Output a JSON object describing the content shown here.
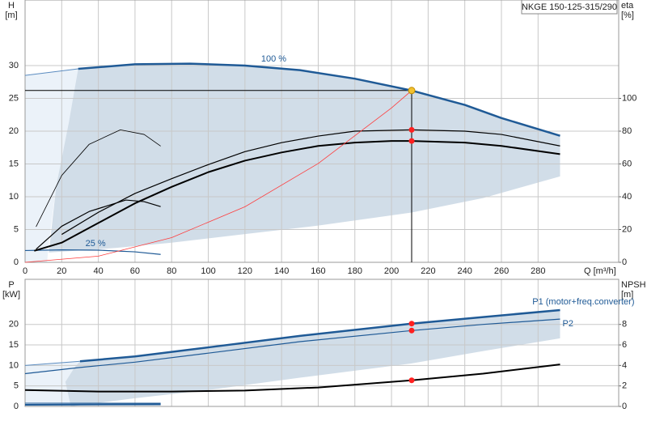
{
  "chart_data": [
    {
      "type": "line",
      "title": "NKGE 150-125-315/290",
      "ylabel": [
        "H",
        "[m]"
      ],
      "y2label": [
        "eta",
        "[%]"
      ],
      "xlabel": "Q [m³/h]",
      "xlim": [
        0,
        324
      ],
      "ylim": [
        0,
        40
      ],
      "y2lim": [
        0,
        160
      ],
      "xticks": [
        0,
        20,
        40,
        60,
        80,
        100,
        120,
        140,
        160,
        180,
        200,
        220,
        240,
        260,
        280
      ],
      "yticks": [
        0,
        5,
        10,
        15,
        20,
        25,
        30
      ],
      "y2ticks": [
        0,
        20,
        40,
        60,
        80,
        100
      ],
      "grid": true,
      "series": [
        {
          "kind": "area",
          "color": "#e8f0f8",
          "x": [
            0,
            29,
            27,
            24,
            17,
            13,
            12,
            0
          ],
          "values": [
            28.5,
            29.5,
            26,
            21.5,
            11.6,
            3,
            0,
            0
          ]
        },
        {
          "kind": "area",
          "color": "#c9d7e4",
          "x": [
            29,
            60,
            90,
            120,
            150,
            180,
            211,
            240,
            260,
            292,
            292,
            250,
            211,
            160,
            120,
            80,
            50,
            30,
            13,
            17,
            24
          ],
          "values": [
            29.5,
            30.2,
            30.3,
            30.0,
            29.3,
            28.0,
            26.2,
            24.0,
            22.0,
            19.3,
            13.1,
            9.8,
            7.6,
            5.6,
            4.3,
            3.0,
            2.2,
            1.8,
            1.5,
            11.6,
            21.5
          ]
        },
        {
          "color": "#5b8cc0",
          "width": 1,
          "x": [
            0,
            29
          ],
          "values": [
            28.5,
            29.5
          ]
        },
        {
          "name": "100 %",
          "color": "#1f5a96",
          "width": 2.5,
          "x": [
            29,
            60,
            90,
            120,
            150,
            180,
            211,
            240,
            260,
            292
          ],
          "values": [
            29.5,
            30.2,
            30.3,
            30.0,
            29.3,
            28.0,
            26.2,
            24.0,
            22.0,
            19.3
          ]
        },
        {
          "name": "25 %",
          "color": "#1f5a96",
          "width": 1.2,
          "x": [
            0,
            20,
            40,
            60,
            74
          ],
          "values": [
            1.8,
            1.9,
            1.85,
            1.6,
            1.2
          ]
        },
        {
          "axis": "y2",
          "color": "#000000",
          "width": 2,
          "x": [
            5,
            20,
            40,
            60,
            80,
            100,
            120,
            140,
            160,
            180,
            200,
            211,
            240,
            260,
            292
          ],
          "values": [
            7,
            12,
            24,
            36,
            46,
            55,
            62,
            67,
            71,
            73,
            74,
            74,
            73,
            71,
            66
          ]
        },
        {
          "axis": "y2",
          "color": "#000000",
          "width": 1.2,
          "x": [
            20,
            40,
            60,
            80,
            100,
            120,
            140,
            160,
            180,
            211,
            240,
            260,
            292
          ],
          "values": [
            17,
            30.5,
            42,
            51,
            59.6,
            67.5,
            73,
            77,
            80,
            80.8,
            80,
            78,
            71
          ]
        },
        {
          "axis": "y2",
          "color": "#000000",
          "width": 0.8,
          "x": [
            6,
            20,
            35,
            52,
            65,
            74
          ],
          "values": [
            21.7,
            53,
            72,
            80.8,
            78,
            70.9
          ]
        },
        {
          "axis": "y2",
          "color": "#000000",
          "width": 1.2,
          "x": [
            6,
            20,
            35,
            55,
            65,
            74
          ],
          "values": [
            8,
            22,
            31,
            38,
            37,
            34
          ]
        },
        {
          "color": "#ff3b3b",
          "width": 0.8,
          "x": [
            0,
            40,
            80,
            120,
            160,
            200,
            211
          ],
          "values": [
            0,
            0.94,
            3.77,
            8.47,
            15.07,
            23.54,
            26.2
          ]
        }
      ],
      "operating_point": {
        "x": 211,
        "value": 26.2,
        "color": "#f2c12e"
      },
      "points": [
        {
          "axis": "y2",
          "x": 211,
          "value": 80.8,
          "color": "#ff2020"
        },
        {
          "axis": "y2",
          "x": 211,
          "value": 74,
          "color": "#ff2020"
        }
      ]
    },
    {
      "type": "line",
      "ylabel": [
        "P",
        "[kW]"
      ],
      "y2label": [
        "NPSH",
        "[m]"
      ],
      "xlim": [
        0,
        324
      ],
      "ylim": [
        0,
        31
      ],
      "y2lim": [
        0,
        12.4
      ],
      "yticks": [
        0,
        5,
        10,
        15,
        20
      ],
      "y2ticks": [
        0,
        2,
        4,
        6,
        8
      ],
      "grid": true,
      "series": [
        {
          "kind": "area",
          "color": "#e8f0f8",
          "x": [
            0,
            30,
            27,
            22,
            25,
            0
          ],
          "values": [
            10,
            11,
            9.5,
            6,
            0,
            0
          ]
        },
        {
          "kind": "area",
          "color": "#c9d7e4",
          "x": [
            30,
            60,
            100,
            150,
            211,
            250,
            292,
            292,
            250,
            211,
            150,
            100,
            60,
            25,
            22,
            27
          ],
          "values": [
            11,
            12.2,
            14.4,
            17.2,
            20.2,
            21.8,
            23.5,
            16.6,
            13.5,
            10.5,
            7,
            4,
            2,
            0,
            6,
            9.5
          ]
        },
        {
          "color": "#5b8cc0",
          "width": 1,
          "x": [
            0,
            30
          ],
          "values": [
            10,
            11
          ]
        },
        {
          "name": "P1 (motor+freq.converter)",
          "color": "#1f5a96",
          "width": 2.5,
          "x": [
            30,
            60,
            100,
            150,
            211,
            250,
            292
          ],
          "values": [
            11,
            12.2,
            14.4,
            17.2,
            20.2,
            21.8,
            23.5
          ]
        },
        {
          "name": "P2",
          "color": "#1f5a96",
          "width": 1.2,
          "x": [
            0,
            30,
            60,
            100,
            150,
            211,
            250,
            292
          ],
          "values": [
            8,
            9.5,
            10.8,
            13,
            15.8,
            18.5,
            20,
            21.3
          ]
        },
        {
          "axis": "y2",
          "color": "#000000",
          "width": 2,
          "x": [
            0,
            40,
            80,
            120,
            160,
            211,
            250,
            292
          ],
          "values": [
            1.6,
            1.45,
            1.45,
            1.55,
            1.85,
            2.55,
            3.2,
            4.1
          ]
        },
        {
          "color": "#1f5a96",
          "width": 2,
          "x": [
            0,
            74
          ],
          "values": [
            0.4,
            0.5
          ]
        },
        {
          "color": "#1f5a96",
          "width": 1,
          "x": [
            0,
            74
          ],
          "values": [
            0.8,
            0.8
          ]
        }
      ],
      "points": [
        {
          "x": 211,
          "value": 20.2,
          "color": "#ff2020"
        },
        {
          "x": 211,
          "value": 18.5,
          "color": "#ff2020"
        },
        {
          "axis": "y2",
          "x": 211,
          "value": 2.55,
          "color": "#ff2020"
        }
      ]
    }
  ]
}
